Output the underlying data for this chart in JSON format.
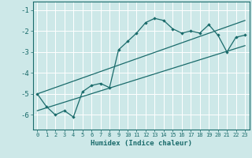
{
  "xlabel": "Humidex (Indice chaleur)",
  "background_color": "#cde8e8",
  "grid_color": "#ffffff",
  "line_color": "#1a6b6b",
  "xlim": [
    -0.5,
    23.5
  ],
  "ylim": [
    -6.7,
    -0.6
  ],
  "yticks": [
    -6,
    -5,
    -4,
    -3,
    -2,
    -1
  ],
  "xticks": [
    0,
    1,
    2,
    3,
    4,
    5,
    6,
    7,
    8,
    9,
    10,
    11,
    12,
    13,
    14,
    15,
    16,
    17,
    18,
    19,
    20,
    21,
    22,
    23
  ],
  "main_x": [
    0,
    1,
    2,
    3,
    4,
    5,
    6,
    7,
    8,
    9,
    10,
    11,
    12,
    13,
    14,
    15,
    16,
    17,
    18,
    19,
    20,
    21,
    22,
    23
  ],
  "main_y": [
    -5.0,
    -5.6,
    -6.0,
    -5.8,
    -6.1,
    -4.9,
    -4.6,
    -4.5,
    -4.7,
    -2.9,
    -2.5,
    -2.1,
    -1.6,
    -1.4,
    -1.5,
    -1.9,
    -2.1,
    -2.0,
    -2.1,
    -1.7,
    -2.2,
    -3.0,
    -2.3,
    -2.2
  ],
  "line1_x": [
    0,
    23
  ],
  "line1_y": [
    -5.0,
    -1.5
  ],
  "line2_x": [
    0,
    23
  ],
  "line2_y": [
    -5.8,
    -2.7
  ]
}
